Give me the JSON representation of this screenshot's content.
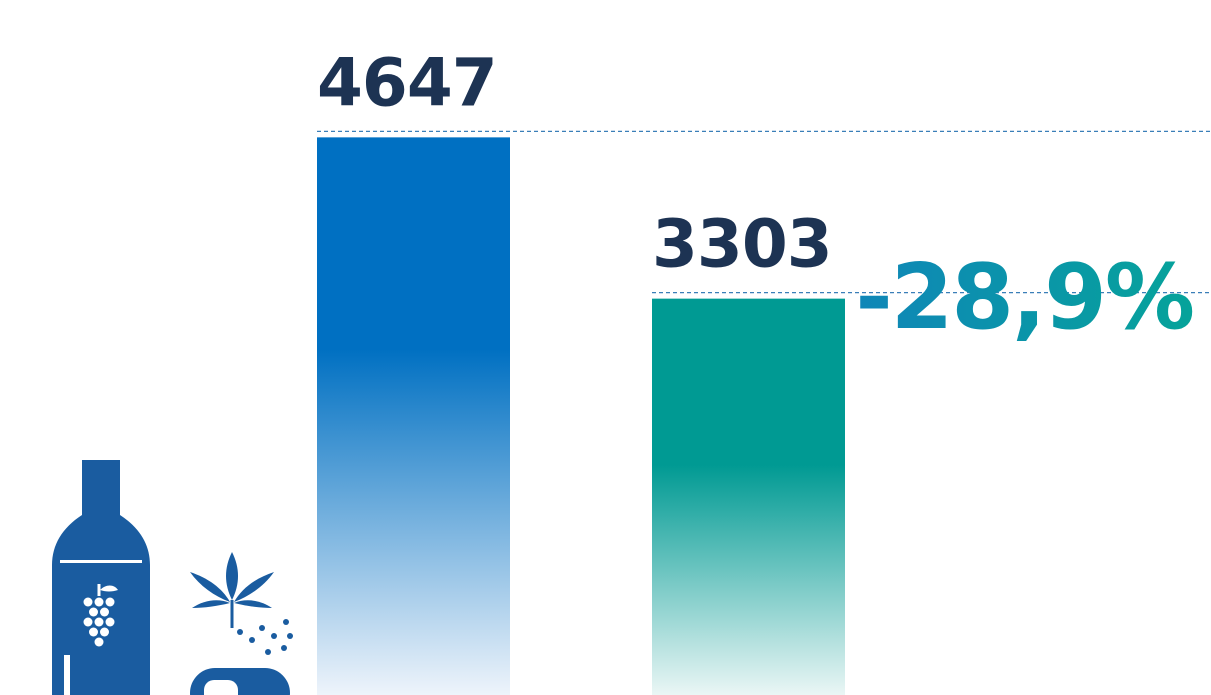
{
  "chart_data": {
    "type": "bar",
    "categories": [
      "",
      ""
    ],
    "values": [
      4647,
      3303
    ],
    "value_labels": [
      "4647",
      "3303"
    ],
    "change_label": "-28,9%",
    "ylim": [
      0,
      5500
    ],
    "grid": false,
    "reference_lines": "dashed line at top of each bar",
    "legend": "none"
  },
  "colors": {
    "label_text": "#1d3353",
    "bar_1": "#0070c2",
    "bar_2": "#009a93",
    "change_text_from": "#0f86b8",
    "change_text_to": "#06a39a",
    "reference_line": "#3a7fb8",
    "icon_fill": "#1a5ca0"
  },
  "icons": [
    "wine-bottle-icon",
    "cannabis-leaf-icon",
    "pills-icon"
  ]
}
